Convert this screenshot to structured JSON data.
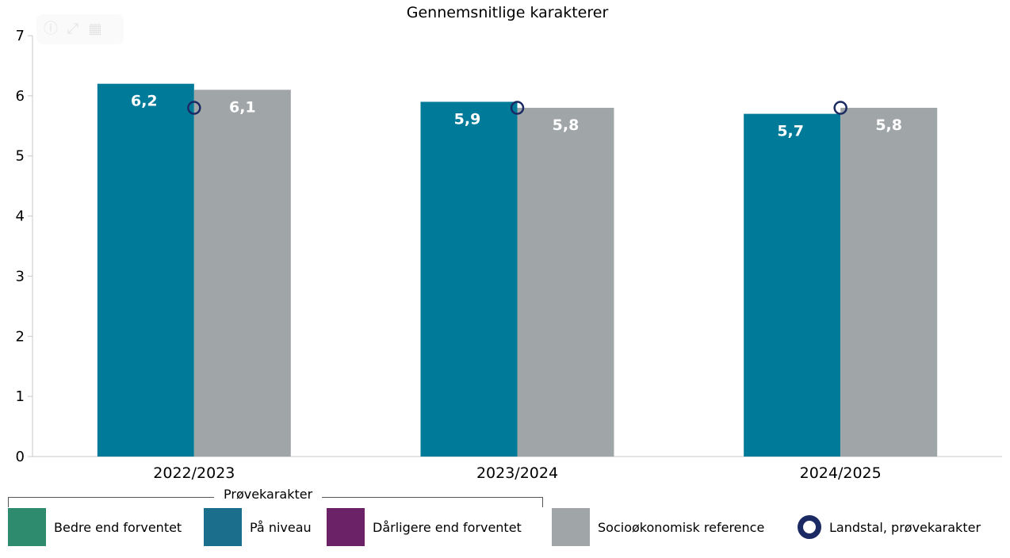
{
  "chart_data": {
    "type": "bar",
    "title": "Gennemsnitlige karakterer",
    "categories": [
      "2022/2023",
      "2023/2024",
      "2024/2025"
    ],
    "series": [
      {
        "name": "På niveau",
        "values": [
          6.2,
          5.9,
          5.7
        ],
        "labels": [
          "6,2",
          "5,9",
          "5,7"
        ],
        "color": "#007a99"
      },
      {
        "name": "Socioøkonomisk reference",
        "values": [
          6.1,
          5.8,
          5.8
        ],
        "labels": [
          "6,1",
          "5,8",
          "5,8"
        ],
        "color": "#a0a6a8"
      }
    ],
    "markers": {
      "name": "Landstal, prøvekarakter",
      "values": [
        5.8,
        5.8,
        5.8
      ],
      "color": "#1c2a63"
    },
    "ylim": [
      0,
      7
    ],
    "yticks": [
      "0",
      "1",
      "2",
      "3",
      "4",
      "5",
      "6",
      "7"
    ],
    "grid": false,
    "legend_position": "bottom"
  },
  "legend": {
    "group_title": "Prøvekarakter",
    "items": [
      {
        "label": "Bedre end forventet",
        "color": "#2e8b6e"
      },
      {
        "label": "På niveau",
        "color": "#1b6f8c"
      },
      {
        "label": "Dårligere end forventet",
        "color": "#6b2266"
      },
      {
        "label": "Socioøkonomisk reference",
        "color": "#a0a6a8"
      },
      {
        "label": "Landstal, prøvekarakter",
        "color": "#1c2a63"
      }
    ]
  },
  "toolbar": {
    "icons": [
      "info-icon",
      "expand-icon",
      "table-icon"
    ]
  }
}
